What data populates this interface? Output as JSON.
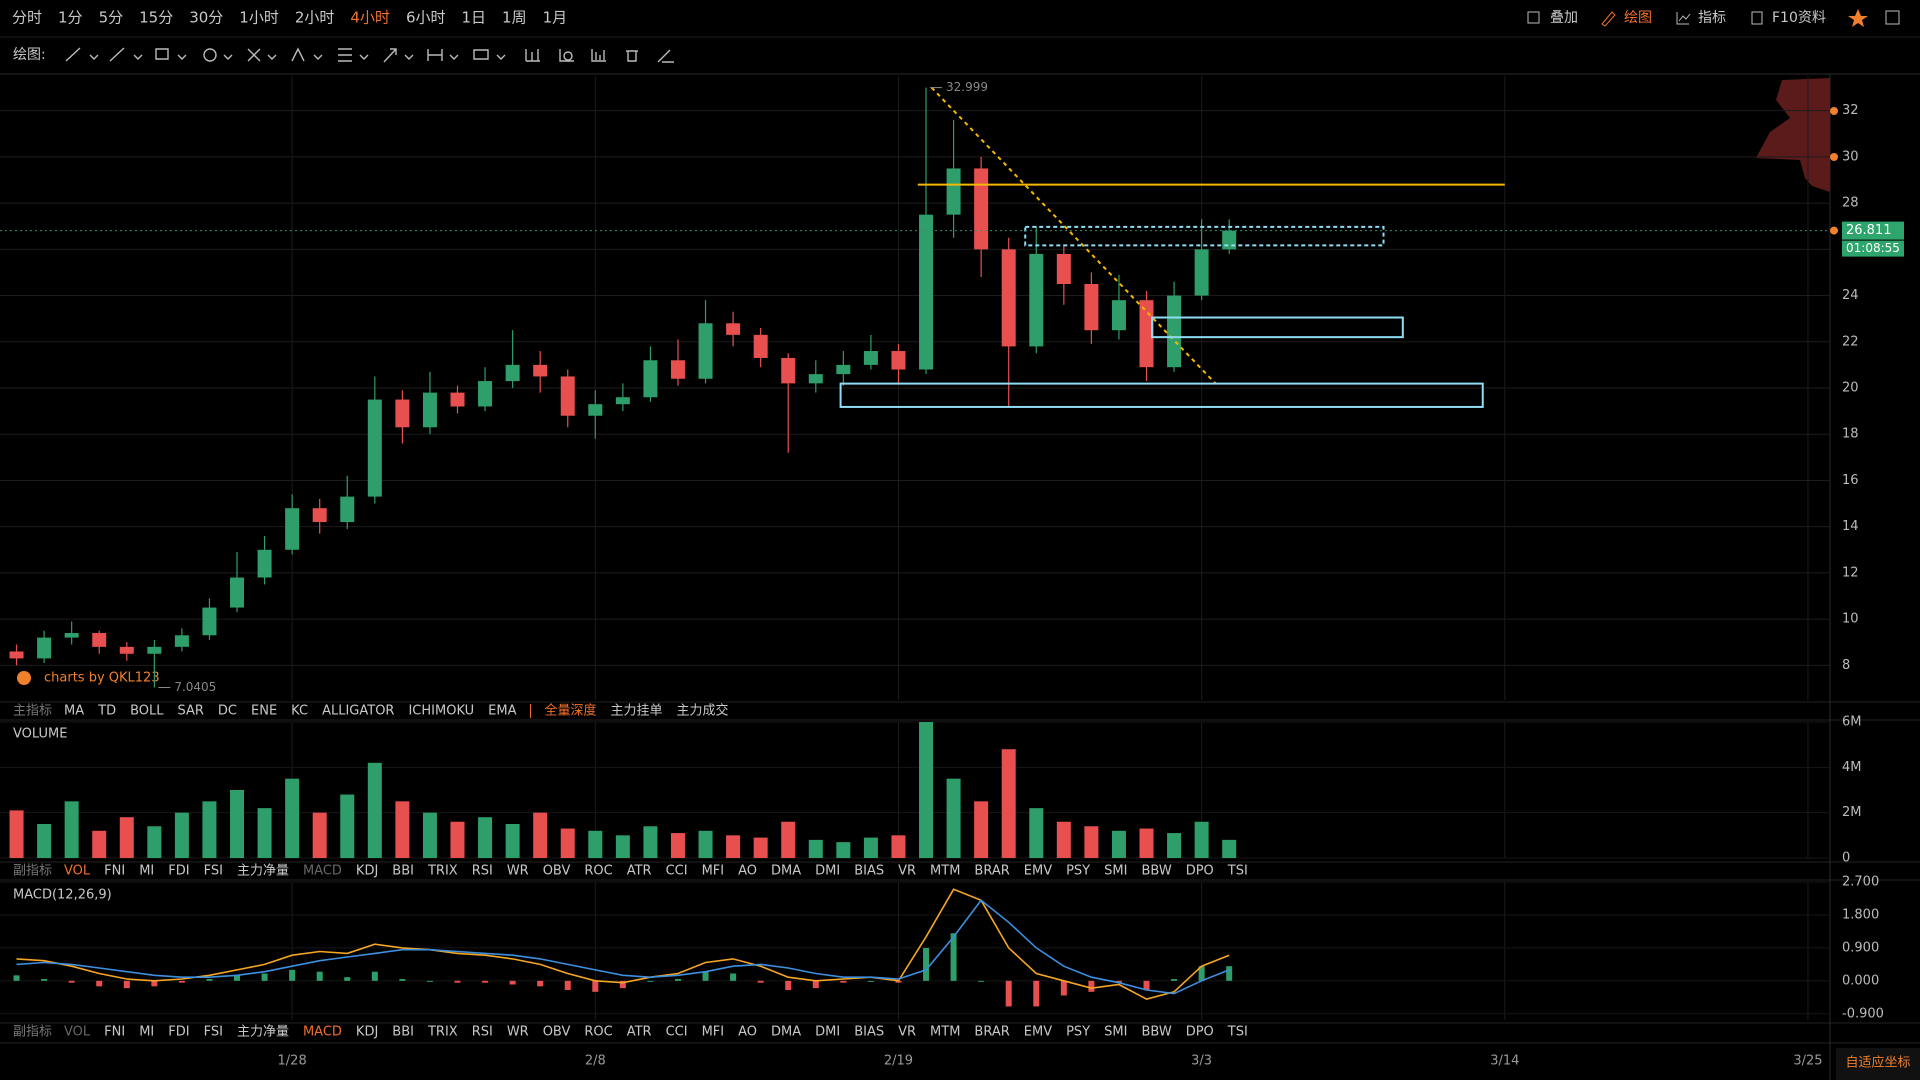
{
  "top_bar": {
    "intervals": [
      "分时",
      "1分",
      "5分",
      "15分",
      "30分",
      "1小时",
      "2小时",
      "4小时",
      "6小时",
      "1日",
      "1周",
      "1月"
    ],
    "active": "4小时",
    "tools": [
      "叠加",
      "绘图",
      "指标",
      "F10资料"
    ],
    "active_tool": "绘图"
  },
  "drawing_bar": {
    "label": "绘图:"
  },
  "indicator_rows": [
    {
      "label": "主指标",
      "items": [
        "MA",
        "TD",
        "BOLL",
        "SAR",
        "DC",
        "ENE",
        "KC",
        "ALLIGATOR",
        "ICHIMOKU",
        "EMA"
      ],
      "extra": [
        "全量深度",
        "主力挂单",
        "主力成交"
      ],
      "active": "全量深度"
    },
    {
      "label": "副指标",
      "items": [
        "VOL",
        "FNI",
        "MI",
        "FDI",
        "FSI",
        "主力净量",
        "MACD",
        "KDJ",
        "BBI",
        "TRIX",
        "RSI",
        "WR",
        "OBV",
        "ROC",
        "ATR",
        "CCI",
        "MFI",
        "AO",
        "DMA",
        "DMI",
        "BIAS",
        "VR",
        "MTM",
        "BRAR",
        "EMV",
        "PSY",
        "SMI",
        "BBW",
        "DPO",
        "TSI"
      ],
      "active": "VOL",
      "dim": "MACD"
    },
    {
      "label": "副指标",
      "items": [
        "VOL",
        "FNI",
        "MI",
        "FDI",
        "FSI",
        "主力净量",
        "MACD",
        "KDJ",
        "BBI",
        "TRIX",
        "RSI",
        "WR",
        "OBV",
        "ROC",
        "ATR",
        "CCI",
        "MFI",
        "AO",
        "DMA",
        "DMI",
        "BIAS",
        "VR",
        "MTM",
        "BRAR",
        "EMV",
        "PSY",
        "SMI",
        "BBW",
        "DPO",
        "TSI"
      ],
      "active": "MACD",
      "dim": "VOL"
    }
  ],
  "watermark": "charts by QKL123",
  "footer": {
    "auto_scale": "自适应坐标"
  },
  "chart_data": [
    {
      "type": "candlestick",
      "x": [
        -10,
        -9,
        -8,
        -7,
        -6,
        -5,
        -4,
        -3,
        -2,
        -1,
        0,
        1,
        2,
        3,
        4,
        5,
        6,
        7,
        8,
        9,
        10,
        11,
        12,
        13,
        14,
        15,
        16,
        17,
        18,
        19,
        20,
        21,
        22,
        23,
        24,
        25,
        26,
        27,
        28,
        29,
        30,
        31,
        32,
        33,
        34
      ],
      "open": [
        8.6,
        8.3,
        9.2,
        9.4,
        8.8,
        8.5,
        8.8,
        9.3,
        10.5,
        11.8,
        13.0,
        14.8,
        14.2,
        15.3,
        19.5,
        18.3,
        19.8,
        19.2,
        20.3,
        21.0,
        20.5,
        18.8,
        19.3,
        19.6,
        21.2,
        20.4,
        22.8,
        22.3,
        21.3,
        20.2,
        20.6,
        21.0,
        21.6,
        20.8,
        27.5,
        29.5,
        26.0,
        21.8,
        25.8,
        24.5,
        22.5,
        23.8,
        20.9,
        24.0,
        26.0
      ],
      "high": [
        8.9,
        9.5,
        9.9,
        9.5,
        9.0,
        9.1,
        9.6,
        10.9,
        12.9,
        13.6,
        15.4,
        15.2,
        16.2,
        20.5,
        19.9,
        20.7,
        20.1,
        20.9,
        22.5,
        21.6,
        20.8,
        19.9,
        20.2,
        21.8,
        22.1,
        23.8,
        23.3,
        22.6,
        21.5,
        21.2,
        21.6,
        22.3,
        21.9,
        32.999,
        31.6,
        30.0,
        26.5,
        27.0,
        26.2,
        25.0,
        24.9,
        24.2,
        24.6,
        27.3,
        27.3
      ],
      "low": [
        8.0,
        8.1,
        8.9,
        8.5,
        8.2,
        7.0405,
        8.6,
        9.1,
        10.3,
        11.5,
        12.8,
        13.7,
        13.9,
        15.0,
        17.6,
        18.0,
        18.9,
        19.0,
        20.0,
        19.8,
        18.3,
        17.8,
        19.0,
        19.4,
        20.1,
        20.2,
        21.8,
        20.9,
        17.2,
        19.8,
        20.1,
        20.8,
        20.2,
        20.6,
        26.5,
        24.8,
        19.2,
        21.5,
        23.6,
        21.9,
        22.1,
        20.3,
        20.7,
        23.8,
        25.8
      ],
      "close": [
        8.3,
        9.2,
        9.4,
        8.8,
        8.5,
        8.8,
        9.3,
        10.5,
        11.8,
        13.0,
        14.8,
        14.2,
        15.3,
        19.5,
        18.3,
        19.8,
        19.2,
        20.3,
        21.0,
        20.5,
        18.8,
        19.3,
        19.6,
        21.2,
        20.4,
        22.8,
        22.3,
        21.3,
        20.2,
        20.6,
        21.0,
        21.6,
        20.8,
        27.5,
        29.5,
        26.0,
        21.8,
        25.8,
        24.5,
        22.5,
        23.8,
        20.9,
        24.0,
        26.0,
        26.811
      ],
      "up_color": "#2e9e6a",
      "down_color": "#e8504f",
      "xlim": [
        -10.6,
        55.8
      ],
      "xticks": [
        {
          "value": 0,
          "label": "1/28"
        },
        {
          "value": 11,
          "label": "2/8"
        },
        {
          "value": 22,
          "label": "2/19"
        },
        {
          "value": 33,
          "label": "3/3"
        },
        {
          "value": 44,
          "label": "3/14"
        },
        {
          "value": 55,
          "label": "3/25"
        }
      ],
      "ylim": [
        6.5,
        33.5
      ],
      "yticks": [
        8,
        10,
        12,
        14,
        16,
        18,
        20,
        22,
        24,
        26,
        28,
        30,
        32
      ],
      "grid": true,
      "high_label": {
        "x": 23,
        "value": 32.999
      },
      "low_label": {
        "x": -5,
        "value": 7.0405
      },
      "last_price": {
        "value": 26.811,
        "timer": "01:08:55",
        "color": "#2ea56c"
      },
      "drawings": [
        {
          "kind": "hline",
          "x": [
            22.7,
            44
          ],
          "value": 28.8,
          "color": "#f5b800"
        },
        {
          "kind": "trend",
          "x": [
            23.2,
            33.5
          ],
          "values": [
            32.999,
            20.2
          ],
          "color": "#f5b800"
        },
        {
          "kind": "rect",
          "x": [
            26.6,
            39.6
          ],
          "values": [
            26.17,
            26.97
          ],
          "color": "#8fdcf5",
          "dashed": true
        },
        {
          "kind": "rect",
          "x": [
            31.2,
            40.3
          ],
          "values": [
            22.2,
            23.05
          ],
          "color": "#8fdcf5"
        },
        {
          "kind": "rect",
          "x": [
            19.9,
            43.2
          ],
          "values": [
            19.18,
            20.19
          ],
          "color": "#8fdcf5"
        }
      ]
    },
    {
      "type": "bar",
      "title": "VOLUME",
      "x": [
        -10,
        -9,
        -8,
        -7,
        -6,
        -5,
        -4,
        -3,
        -2,
        -1,
        0,
        1,
        2,
        3,
        4,
        5,
        6,
        7,
        8,
        9,
        10,
        11,
        12,
        13,
        14,
        15,
        16,
        17,
        18,
        19,
        20,
        21,
        22,
        23,
        24,
        25,
        26,
        27,
        28,
        29,
        30,
        31,
        32,
        33,
        34
      ],
      "values": [
        2100000,
        1500000,
        2500000,
        1200000,
        1800000,
        1400000,
        2000000,
        2500000,
        3000000,
        2200000,
        3500000,
        2000000,
        2800000,
        4200000,
        2500000,
        2000000,
        1600000,
        1800000,
        1500000,
        2000000,
        1300000,
        1200000,
        1000000,
        1400000,
        1100000,
        1200000,
        1000000,
        900000,
        1600000,
        800000,
        700000,
        900000,
        1000000,
        6000000,
        3500000,
        2500000,
        4800000,
        2200000,
        1600000,
        1400000,
        1200000,
        1300000,
        1100000,
        1600000,
        800000
      ],
      "xlim": [
        -10.6,
        55.8
      ],
      "ylim": [
        0,
        6000000
      ],
      "yticks": [
        0,
        {
          "value": 2000000,
          "label": "2M"
        },
        {
          "value": 4000000,
          "label": "4M"
        },
        {
          "value": 6000000,
          "label": "6M"
        }
      ]
    },
    {
      "type": "macd",
      "title": "MACD(12,26,9)",
      "x": [
        -10,
        -9,
        -8,
        -7,
        -6,
        -5,
        -4,
        -3,
        -2,
        -1,
        0,
        1,
        2,
        3,
        4,
        5,
        6,
        7,
        8,
        9,
        10,
        11,
        12,
        13,
        14,
        15,
        16,
        17,
        18,
        19,
        20,
        21,
        22,
        23,
        24,
        25,
        26,
        27,
        28,
        29,
        30,
        31,
        32,
        33,
        34
      ],
      "series": [
        {
          "color": "#f5a623",
          "values": [
            0.6,
            0.55,
            0.4,
            0.2,
            0.05,
            0.0,
            0.05,
            0.15,
            0.3,
            0.45,
            0.7,
            0.8,
            0.75,
            1.0,
            0.9,
            0.85,
            0.75,
            0.7,
            0.6,
            0.45,
            0.2,
            0.0,
            -0.05,
            0.1,
            0.2,
            0.5,
            0.6,
            0.4,
            0.1,
            0.0,
            0.05,
            0.1,
            0.0,
            1.2,
            2.5,
            2.2,
            0.9,
            0.2,
            0.0,
            -0.2,
            -0.1,
            -0.5,
            -0.3,
            0.4,
            0.7
          ]
        },
        {
          "color": "#3d8fe0",
          "values": [
            0.45,
            0.5,
            0.45,
            0.35,
            0.25,
            0.15,
            0.1,
            0.1,
            0.15,
            0.25,
            0.4,
            0.55,
            0.65,
            0.75,
            0.85,
            0.85,
            0.8,
            0.75,
            0.7,
            0.6,
            0.45,
            0.3,
            0.15,
            0.1,
            0.15,
            0.25,
            0.4,
            0.45,
            0.35,
            0.2,
            0.1,
            0.1,
            0.05,
            0.3,
            1.2,
            2.2,
            1.6,
            0.9,
            0.4,
            0.1,
            -0.05,
            -0.25,
            -0.35,
            0.0,
            0.3
          ]
        }
      ],
      "histogram": {
        "values": [
          0.15,
          0.05,
          -0.05,
          -0.15,
          -0.2,
          -0.15,
          -0.05,
          0.05,
          0.15,
          0.2,
          0.3,
          0.25,
          0.1,
          0.25,
          0.05,
          0,
          -0.05,
          -0.05,
          -0.1,
          -0.15,
          -0.25,
          -0.3,
          -0.2,
          0,
          0.05,
          0.25,
          0.2,
          -0.05,
          -0.25,
          -0.2,
          -0.05,
          0,
          -0.05,
          0.9,
          1.3,
          0,
          -0.7,
          -0.7,
          -0.4,
          -0.3,
          -0.05,
          -0.25,
          0.05,
          0.4,
          0.4
        ],
        "pos_color": "#2e9e6a",
        "neg_color": "#e8504f"
      },
      "xlim": [
        -10.6,
        55.8
      ],
      "ylim": [
        -1.07,
        2.7
      ],
      "yticks": [
        {
          "value": -0.9,
          "label": "-0.900"
        },
        {
          "value": 0,
          "label": "0.000"
        },
        {
          "value": 0.9,
          "label": "0.900"
        },
        {
          "value": 1.8,
          "label": "1.800"
        },
        {
          "value": 2.7,
          "label": "2.700"
        }
      ]
    }
  ]
}
